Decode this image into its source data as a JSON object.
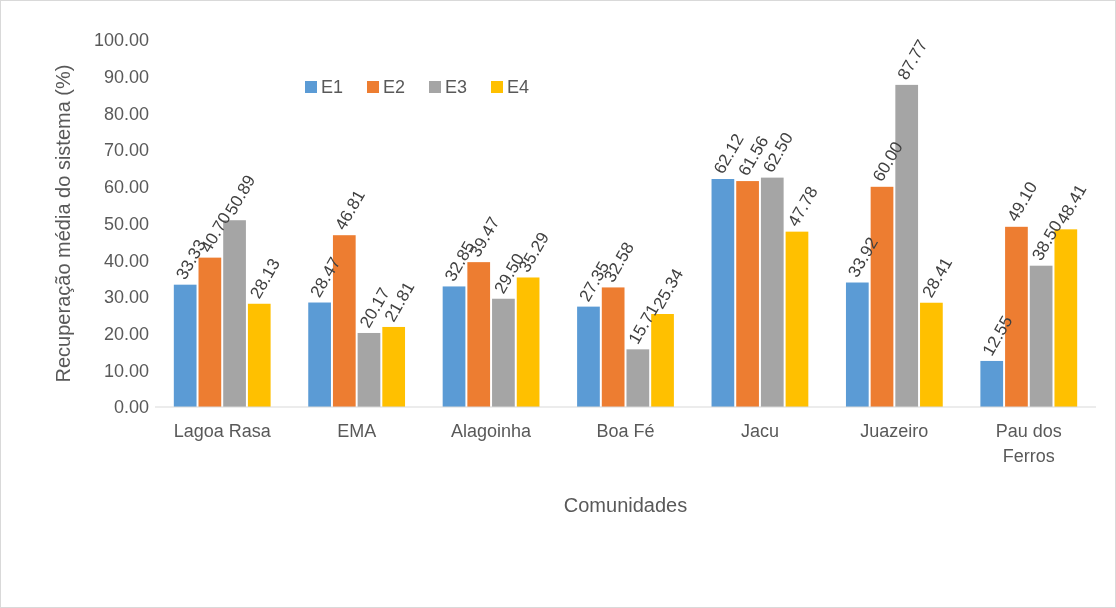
{
  "chart_data": {
    "type": "bar",
    "xlabel": "Comunidades",
    "ylabel": "Recuperação média do sistema (%)",
    "categories": [
      "Lagoa Rasa",
      "EMA",
      "Alagoinha",
      "Boa Fé",
      "Jacu",
      "Juazeiro",
      "Pau dos Ferros"
    ],
    "series": [
      {
        "name": "E1",
        "color": "#5b9bd5",
        "values": [
          33.33,
          28.47,
          32.85,
          27.35,
          62.12,
          33.92,
          12.55
        ],
        "value_labels": [
          "33.33",
          "28.47",
          "32.85",
          "27.35",
          "62.12",
          "33.92",
          "12.55"
        ]
      },
      {
        "name": "E2",
        "color": "#ed7d31",
        "values": [
          40.7,
          46.81,
          39.47,
          32.58,
          61.56,
          60.0,
          49.1
        ],
        "value_labels": [
          "40.70",
          "46.81",
          "39.47",
          "32.58",
          "61.56",
          "60.00",
          "49.10"
        ]
      },
      {
        "name": "E3",
        "color": "#a5a5a5",
        "values": [
          50.89,
          20.17,
          29.5,
          15.71,
          62.5,
          87.77,
          38.5
        ],
        "value_labels": [
          "50.89",
          "20.17",
          "29.50",
          "15.71",
          "62.50",
          "87.77",
          "38.50"
        ]
      },
      {
        "name": "E4",
        "color": "#ffc000",
        "values": [
          28.13,
          21.81,
          35.29,
          25.34,
          47.78,
          28.41,
          48.41
        ],
        "value_labels": [
          "28.13",
          "21.81",
          "35.29",
          "25.34",
          "47.78",
          "28.41",
          "48.41"
        ]
      }
    ],
    "ylim": [
      0,
      100
    ],
    "yticks": [
      {
        "value": 0,
        "label": "0.00"
      },
      {
        "value": 10,
        "label": "10.00"
      },
      {
        "value": 20,
        "label": "20.00"
      },
      {
        "value": 30,
        "label": "30.00"
      },
      {
        "value": 40,
        "label": "40.00"
      },
      {
        "value": 50,
        "label": "50.00"
      },
      {
        "value": 60,
        "label": "60.00"
      },
      {
        "value": 70,
        "label": "70.00"
      },
      {
        "value": 80,
        "label": "80.00"
      },
      {
        "value": 90,
        "label": "90.00"
      },
      {
        "value": 100,
        "label": "100.00"
      }
    ],
    "legend": "top left",
    "grid": false
  }
}
